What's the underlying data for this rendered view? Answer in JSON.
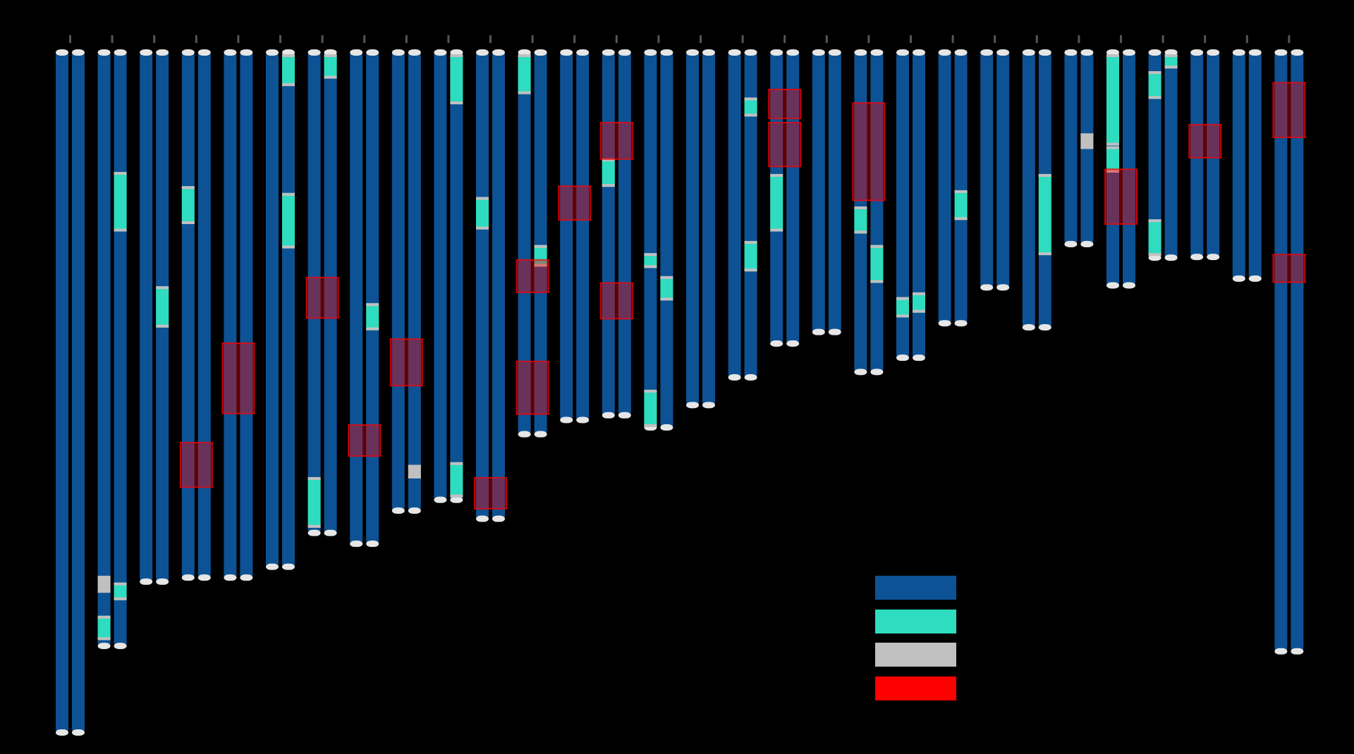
{
  "colors": {
    "background": "#000000",
    "base": "#0d5294",
    "teal": "#2edcc0",
    "gray": "#c0c0c0",
    "cap": "#e6e6e6",
    "red": "#ff0000",
    "tick": "#555555"
  },
  "scale_max": 1000,
  "legend": [
    {
      "key": "base",
      "label": ""
    },
    {
      "key": "teal",
      "label": ""
    },
    {
      "key": "gray",
      "label": ""
    },
    {
      "key": "red",
      "label": ""
    }
  ],
  "chromosomes": [
    {
      "length": 1000,
      "a": [],
      "b": [],
      "hl": []
    },
    {
      "length": 872,
      "a": [
        [
          771,
          796,
          "gray"
        ],
        [
          830,
          866,
          "teal"
        ]
      ],
      "b": [
        [
          174,
          262,
          "teal"
        ],
        [
          781,
          807,
          "teal"
        ]
      ],
      "hl": []
    },
    {
      "length": 777,
      "a": [],
      "b": [
        [
          343,
          404,
          "teal"
        ]
      ],
      "hl": []
    },
    {
      "length": 771,
      "a": [
        [
          195,
          251,
          "teal"
        ]
      ],
      "b": [],
      "hl": [
        [
          574,
          640
        ]
      ]
    },
    {
      "length": 771,
      "a": [],
      "b": [],
      "hl": [
        [
          427,
          531
        ]
      ]
    },
    {
      "length": 755,
      "a": [],
      "b": [
        [
          0,
          47,
          "teal"
        ],
        [
          205,
          287,
          "teal"
        ]
      ],
      "hl": []
    },
    {
      "length": 705,
      "a": [
        [
          625,
          700,
          "teal"
        ]
      ],
      "b": [
        [
          0,
          36,
          "teal"
        ]
      ],
      "hl": [
        [
          330,
          390
        ]
      ]
    },
    {
      "length": 721,
      "a": [],
      "b": [
        [
          368,
          408,
          "teal"
        ]
      ],
      "hl": [
        [
          548,
          594
        ]
      ]
    },
    {
      "length": 672,
      "a": [],
      "b": [
        [
          607,
          627,
          "gray"
        ]
      ],
      "hl": [
        [
          421,
          490
        ]
      ]
    },
    {
      "length": 656,
      "a": [],
      "b": [
        [
          0,
          74,
          "teal"
        ],
        [
          603,
          655,
          "teal"
        ]
      ],
      "hl": []
    },
    {
      "length": 684,
      "a": [
        [
          211,
          259,
          "teal"
        ]
      ],
      "b": [],
      "hl": [
        [
          626,
          672
        ]
      ]
    },
    {
      "length": 559,
      "a": [
        [
          0,
          59,
          "teal"
        ]
      ],
      "b": [
        [
          282,
          314,
          "teal"
        ]
      ],
      "hl": [
        [
          304,
          352
        ],
        [
          454,
          532
        ]
      ]
    },
    {
      "length": 538,
      "a": [],
      "b": [],
      "hl": [
        [
          195,
          245
        ]
      ]
    },
    {
      "length": 531,
      "a": [
        [
          154,
          196,
          "teal"
        ]
      ],
      "b": [],
      "hl": [
        [
          101,
          155
        ],
        [
          338,
          391
        ]
      ]
    },
    {
      "length": 549,
      "a": [
        [
          294,
          316,
          "teal"
        ],
        [
          496,
          551,
          "teal"
        ]
      ],
      "b": [
        [
          328,
          364,
          "teal"
        ]
      ],
      "hl": []
    },
    {
      "length": 516,
      "a": [],
      "b": [],
      "hl": []
    },
    {
      "length": 475,
      "a": [],
      "b": [
        [
          64,
          92,
          "teal"
        ],
        [
          276,
          321,
          "teal"
        ]
      ],
      "hl": []
    },
    {
      "length": 425,
      "a": [
        [
          177,
          262,
          "teal"
        ]
      ],
      "b": [],
      "hl": [
        [
          52,
          95
        ],
        [
          101,
          166
        ]
      ]
    },
    {
      "length": 408,
      "a": [],
      "b": [],
      "hl": []
    },
    {
      "length": 467,
      "a": [
        [
          225,
          265,
          "teal"
        ]
      ],
      "b": [
        [
          282,
          338,
          "teal"
        ]
      ],
      "hl": [
        [
          72,
          216
        ]
      ]
    },
    {
      "length": 446,
      "a": [
        [
          359,
          389,
          "teal"
        ]
      ],
      "b": [
        [
          352,
          382,
          "teal"
        ]
      ],
      "hl": []
    },
    {
      "length": 395,
      "a": [],
      "b": [
        [
          201,
          245,
          "teal"
        ]
      ],
      "hl": []
    },
    {
      "length": 342,
      "a": [],
      "b": [],
      "hl": []
    },
    {
      "length": 401,
      "a": [],
      "b": [
        [
          177,
          297,
          "teal"
        ]
      ],
      "hl": []
    },
    {
      "length": 278,
      "a": [],
      "b": [
        [
          117,
          140,
          "gray"
        ]
      ],
      "hl": []
    },
    {
      "length": 339,
      "a": [
        [
          0,
          135,
          "teal"
        ],
        [
          136,
          175,
          "teal"
        ]
      ],
      "b": [],
      "hl": [
        [
          170,
          251
        ]
      ]
    },
    {
      "length": 298,
      "a": [
        [
          25,
          66,
          "teal"
        ],
        [
          244,
          298,
          "teal"
        ]
      ],
      "b": [
        [
          0,
          21,
          "teal"
        ]
      ],
      "hl": []
    },
    {
      "length": 297,
      "a": [],
      "b": [],
      "hl": [
        [
          104,
          153
        ]
      ]
    },
    {
      "length": 329,
      "a": [],
      "b": [],
      "hl": []
    },
    {
      "length": 880,
      "a": [],
      "b": [],
      "hl": [
        [
          42,
          123
        ],
        [
          296,
          337
        ]
      ]
    }
  ]
}
